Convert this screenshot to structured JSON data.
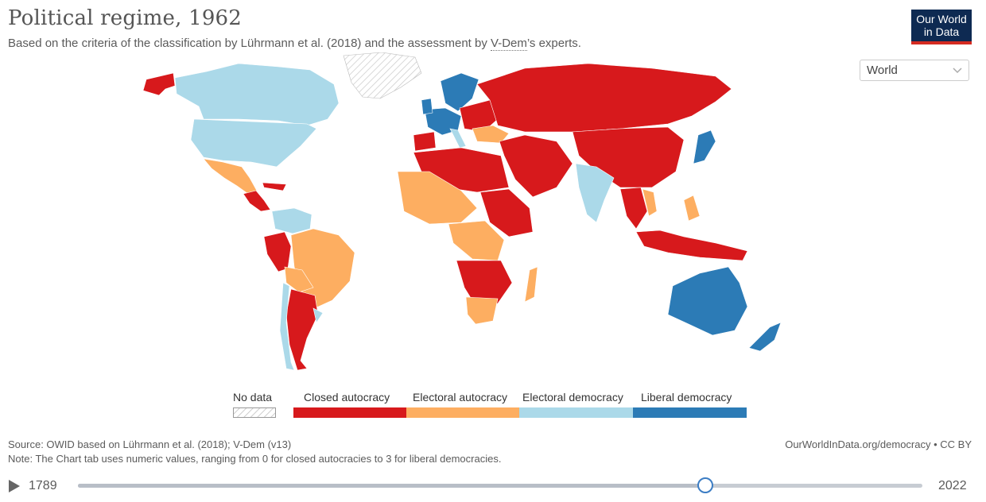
{
  "header": {
    "title": "Political regime, 1962",
    "subtitle_pre": "Based on the criteria of the classification by Lührmann et al. (2018) and the assessment by ",
    "subtitle_link": "V-Dem",
    "subtitle_post": "’s experts.",
    "logo_line1": "Our World",
    "logo_line2": "in Data"
  },
  "region_select": {
    "value": "World",
    "icon": "chevron-down-icon"
  },
  "legend": {
    "no_data_label": "No data",
    "items": [
      {
        "label": "Closed autocracy",
        "color": "#d7191c"
      },
      {
        "label": "Electoral autocracy",
        "color": "#fdae61"
      },
      {
        "label": "Electoral democracy",
        "color": "#abd9e9"
      },
      {
        "label": "Liberal democracy",
        "color": "#2c7bb6"
      }
    ]
  },
  "footer": {
    "source": "Source: OWID based on Lührmann et al. (2018); V-Dem (v13)",
    "note": "Note: The Chart tab uses numeric values, ranging from 0 for closed autocracies to 3 for liberal democracies.",
    "credit": "OurWorldInData.org/democracy • CC BY"
  },
  "timeline": {
    "start_year": "1789",
    "end_year": "2022",
    "selected_year": 1962,
    "min": 1789,
    "max": 2022,
    "play_icon": "play-icon"
  }
}
